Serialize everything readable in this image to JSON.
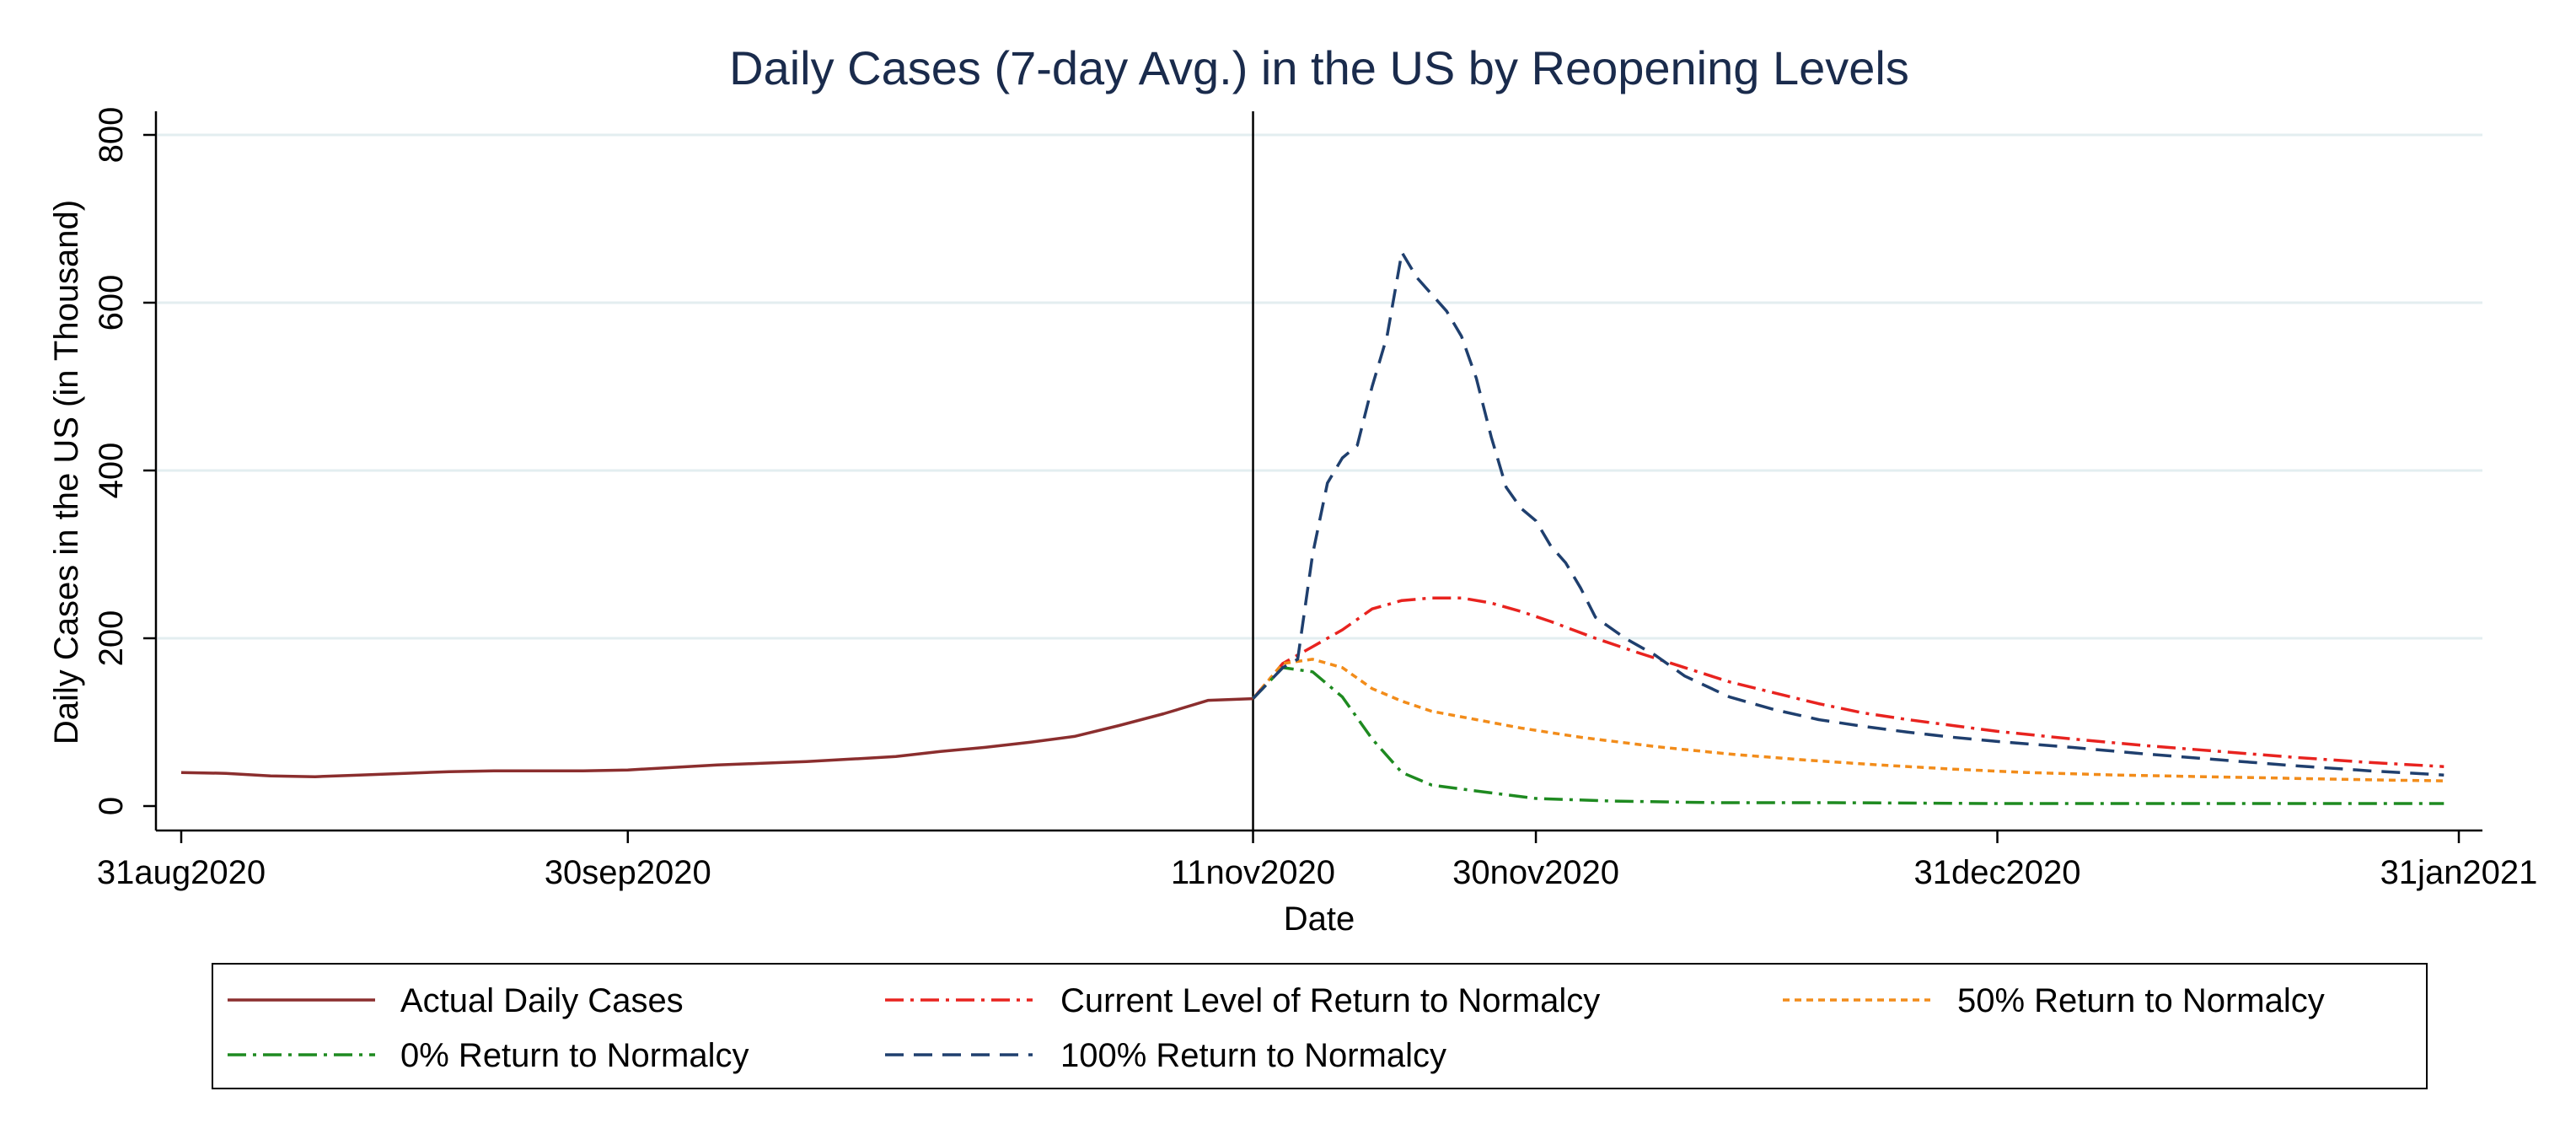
{
  "chart_data": {
    "type": "line",
    "title": "Daily Cases (7-day Avg.) in the US by Reopening Levels",
    "xlabel": "Date",
    "ylabel": "Daily Cases in the US (in Thousand)",
    "x_range": [
      "2020-08-31",
      "2021-01-31"
    ],
    "ylim": [
      0,
      800
    ],
    "y_ticks": [
      0,
      200,
      400,
      600,
      800
    ],
    "x_ticks": [
      {
        "date": "2020-08-31",
        "label": "31aug2020"
      },
      {
        "date": "2020-09-30",
        "label": "30sep2020"
      },
      {
        "date": "2020-11-11",
        "label": "11nov2020"
      },
      {
        "date": "2020-11-30",
        "label": "30nov2020"
      },
      {
        "date": "2020-12-31",
        "label": "31dec2020"
      },
      {
        "date": "2021-01-31",
        "label": "31jan2021"
      }
    ],
    "reference_line_date": "2020-11-11",
    "grid": true,
    "legend_position": "bottom",
    "series": [
      {
        "name": "Actual Daily Cases",
        "color": "#8b2e2e",
        "style": "solid",
        "x": [
          "2020-08-31",
          "2020-09-03",
          "2020-09-06",
          "2020-09-09",
          "2020-09-12",
          "2020-09-15",
          "2020-09-18",
          "2020-09-21",
          "2020-09-24",
          "2020-09-27",
          "2020-09-30",
          "2020-10-03",
          "2020-10-06",
          "2020-10-09",
          "2020-10-12",
          "2020-10-15",
          "2020-10-18",
          "2020-10-21",
          "2020-10-24",
          "2020-10-27",
          "2020-10-30",
          "2020-11-02",
          "2020-11-05",
          "2020-11-08",
          "2020-11-11"
        ],
        "y": [
          40,
          39,
          36,
          35,
          37,
          39,
          41,
          42,
          42,
          42,
          43,
          46,
          49,
          51,
          53,
          56,
          59,
          65,
          70,
          76,
          83,
          96,
          110,
          126,
          128
        ]
      },
      {
        "name": "Current Level of Return to Normalcy",
        "color": "#e8231f",
        "style": "dashdot",
        "x": [
          "2020-11-11",
          "2020-11-13",
          "2020-11-15",
          "2020-11-17",
          "2020-11-19",
          "2020-11-21",
          "2020-11-23",
          "2020-11-25",
          "2020-11-27",
          "2020-11-29",
          "2020-12-01",
          "2020-12-04",
          "2020-12-07",
          "2020-12-10",
          "2020-12-13",
          "2020-12-16",
          "2020-12-19",
          "2020-12-22",
          "2020-12-25",
          "2020-12-28",
          "2020-12-31",
          "2021-01-05",
          "2021-01-10",
          "2021-01-15",
          "2021-01-20",
          "2021-01-25",
          "2021-01-30"
        ],
        "y": [
          128,
          170,
          190,
          210,
          235,
          245,
          248,
          248,
          242,
          232,
          220,
          200,
          182,
          165,
          148,
          135,
          122,
          111,
          103,
          96,
          89,
          80,
          72,
          65,
          58,
          52,
          47
        ]
      },
      {
        "name": "50% Return to Normalcy",
        "color": "#f28c1a",
        "style": "dotted",
        "x": [
          "2020-11-11",
          "2020-11-13",
          "2020-11-15",
          "2020-11-17",
          "2020-11-19",
          "2020-11-21",
          "2020-11-23",
          "2020-11-26",
          "2020-11-29",
          "2020-12-03",
          "2020-12-08",
          "2020-12-13",
          "2020-12-18",
          "2020-12-23",
          "2020-12-28",
          "2021-01-02",
          "2021-01-08",
          "2021-01-14",
          "2021-01-20",
          "2021-01-26",
          "2021-01-30"
        ],
        "y": [
          128,
          170,
          175,
          165,
          140,
          125,
          113,
          103,
          93,
          82,
          71,
          62,
          55,
          49,
          44,
          40,
          37,
          35,
          33,
          31,
          30
        ]
      },
      {
        "name": "0% Return to Normalcy",
        "color": "#1e8a20",
        "style": "dashdot",
        "x": [
          "2020-11-11",
          "2020-11-13",
          "2020-11-15",
          "2020-11-17",
          "2020-11-19",
          "2020-11-21",
          "2020-11-23",
          "2020-11-26",
          "2020-11-30",
          "2020-12-05",
          "2020-12-12",
          "2020-12-20",
          "2020-12-31",
          "2021-01-15",
          "2021-01-30"
        ],
        "y": [
          128,
          165,
          160,
          130,
          80,
          40,
          25,
          18,
          9,
          6,
          4,
          4,
          3,
          3,
          3
        ]
      },
      {
        "name": "100% Return to Normalcy",
        "color": "#1f3f6e",
        "style": "dashed",
        "x": [
          "2020-11-11",
          "2020-11-13",
          "2020-11-14",
          "2020-11-15",
          "2020-11-16",
          "2020-11-17",
          "2020-11-18",
          "2020-11-19",
          "2020-11-20",
          "2020-11-21",
          "2020-11-22",
          "2020-11-23",
          "2020-11-24",
          "2020-11-25",
          "2020-11-26",
          "2020-11-27",
          "2020-11-28",
          "2020-11-29",
          "2020-11-30",
          "2020-12-01",
          "2020-12-02",
          "2020-12-03",
          "2020-12-04",
          "2020-12-06",
          "2020-12-08",
          "2020-12-10",
          "2020-12-13",
          "2020-12-16",
          "2020-12-19",
          "2020-12-22",
          "2020-12-25",
          "2020-12-28",
          "2020-12-31",
          "2021-01-05",
          "2021-01-10",
          "2021-01-15",
          "2021-01-20",
          "2021-01-25",
          "2021-01-30"
        ],
        "y": [
          128,
          165,
          175,
          300,
          385,
          415,
          430,
          500,
          560,
          660,
          630,
          610,
          590,
          560,
          510,
          440,
          380,
          355,
          340,
          310,
          290,
          260,
          225,
          200,
          180,
          155,
          130,
          115,
          103,
          95,
          88,
          82,
          77,
          70,
          62,
          55,
          48,
          42,
          37
        ]
      }
    ]
  }
}
